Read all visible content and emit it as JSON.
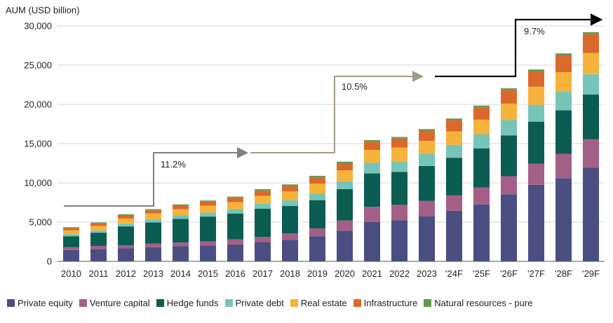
{
  "chart_data": {
    "type": "bar",
    "stacked": true,
    "ylabel": "AUM (USD billion)",
    "ylim": [
      0,
      30000
    ],
    "yticks": [
      "0",
      "5,000",
      "10,000",
      "15,000",
      "20,000",
      "25,000",
      "30,000"
    ],
    "grid": "horizontal",
    "legend_position": "bottom",
    "categories": [
      "2010",
      "2011",
      "2012",
      "2013",
      "2014",
      "2015",
      "2016",
      "2017",
      "2018",
      "2019",
      "2020",
      "2021",
      "2022",
      "2023",
      "'24F",
      "'25F",
      "'26F",
      "'27F",
      "'28F",
      "'29F"
    ],
    "series": [
      {
        "name": "Private equity",
        "color": "#4b4e80",
        "values": [
          1450,
          1550,
          1650,
          1800,
          1950,
          2000,
          2150,
          2450,
          2750,
          3200,
          3900,
          5000,
          5250,
          5750,
          6450,
          7250,
          8550,
          9750,
          10600,
          11950
        ]
      },
      {
        "name": "Venture capital",
        "color": "#a45f86",
        "values": [
          350,
          400,
          400,
          450,
          450,
          550,
          650,
          650,
          800,
          1000,
          1300,
          1950,
          1950,
          1950,
          1950,
          2150,
          2300,
          2700,
          3100,
          3600
        ]
      },
      {
        "name": "Hedge funds",
        "color": "#0b5c51",
        "values": [
          1400,
          1700,
          2400,
          2700,
          3000,
          3150,
          3300,
          3600,
          3500,
          3600,
          4000,
          4250,
          4200,
          4450,
          4800,
          5000,
          5200,
          5350,
          5550,
          5700
        ]
      },
      {
        "name": "Private debt",
        "color": "#76c5b8",
        "values": [
          250,
          300,
          350,
          400,
          450,
          500,
          550,
          650,
          750,
          850,
          1000,
          1350,
          1350,
          1550,
          1650,
          1800,
          1950,
          2150,
          2350,
          2600
        ]
      },
      {
        "name": "Real estate",
        "color": "#f6b33b",
        "values": [
          500,
          550,
          650,
          750,
          800,
          900,
          900,
          1000,
          1100,
          1250,
          1400,
          1650,
          1750,
          1650,
          1700,
          1850,
          2100,
          2300,
          2500,
          2700
        ]
      },
      {
        "name": "Infrastructure",
        "color": "#da6a2c",
        "values": [
          300,
          350,
          400,
          400,
          450,
          500,
          550,
          650,
          700,
          800,
          900,
          1050,
          1150,
          1300,
          1450,
          1600,
          1750,
          1950,
          2150,
          2400
        ]
      },
      {
        "name": "Natural resources - pure",
        "color": "#5e9a52",
        "values": [
          100,
          100,
          150,
          150,
          150,
          150,
          150,
          200,
          200,
          200,
          200,
          200,
          200,
          200,
          200,
          200,
          200,
          250,
          250,
          250
        ]
      }
    ],
    "annotations": [
      {
        "text": "11.2%",
        "color": "#808080"
      },
      {
        "text": "10.5%",
        "color": "#a39a8d"
      },
      {
        "text": "9.7%",
        "color": "#000000"
      }
    ]
  }
}
